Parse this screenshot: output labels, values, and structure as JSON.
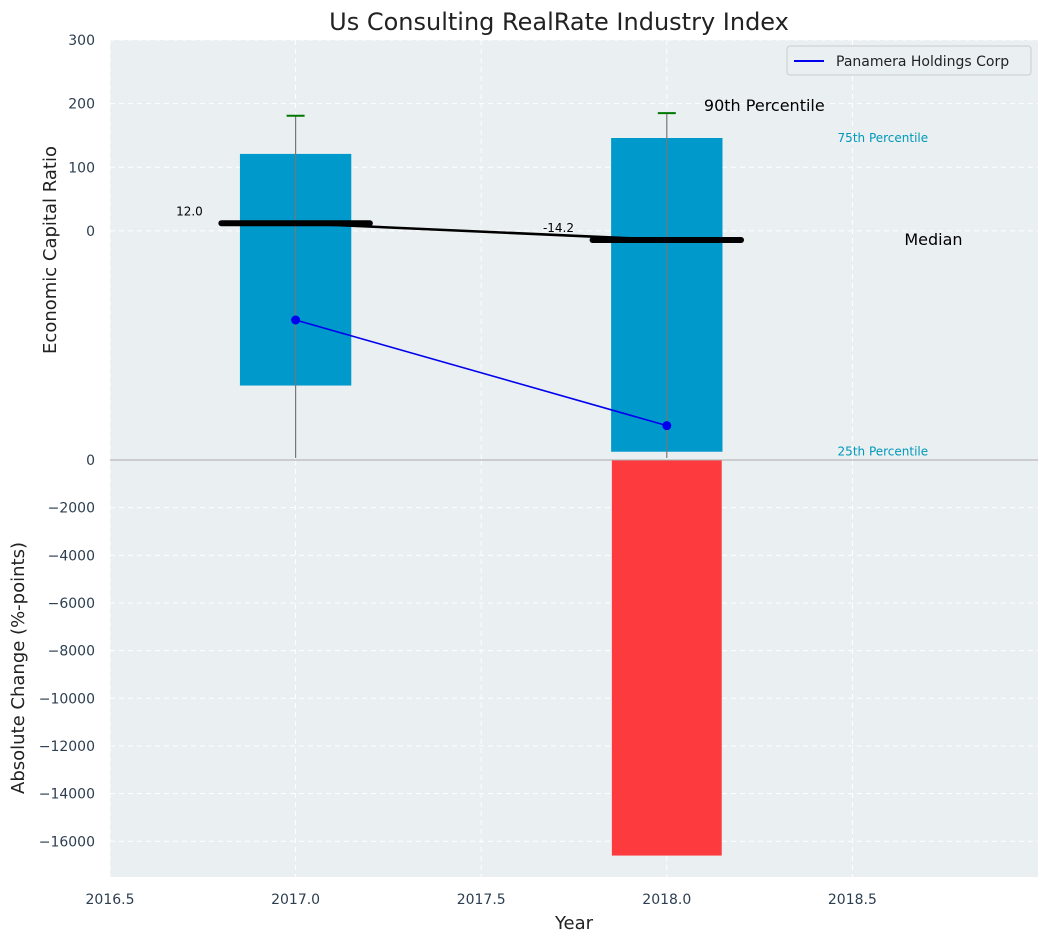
{
  "chart_data": {
    "type": "bar",
    "title": "Us Consulting RealRate Industry Index",
    "xlabel": "Year",
    "xlim": [
      2016.5,
      2019.0
    ],
    "xticks": [
      2016.5,
      2017.0,
      2017.5,
      2018.0,
      2018.5
    ],
    "xtick_labels": [
      "2016.5",
      "2017.0",
      "2017.5",
      "2018.0",
      "2018.5"
    ],
    "grid": true,
    "legend_position": "top-right",
    "colors": {
      "background": "#eaeff1",
      "bar_blue": "#0099cc",
      "bar_red": "#fd3b3e",
      "company_line": "#0000ee",
      "median_line": "#000000",
      "whisker_cap": "#007700",
      "percentile_label": "#0099bb",
      "tick_text": "#2c3e50"
    },
    "top_panel": {
      "ylabel": "Economic Capital Ratio",
      "ylim": [
        -360,
        300
      ],
      "yticks": [
        0,
        100,
        200,
        300
      ],
      "ytick_labels": [
        "0",
        "100",
        "200",
        "300"
      ],
      "series": [
        {
          "name": "Panamera Holdings Corp",
          "type": "line",
          "x": [
            2017.0,
            2018.0
          ],
          "y": [
            -140,
            -306
          ]
        }
      ],
      "percentile_bars": [
        {
          "x": 2017.0,
          "p25": -243,
          "p75": 121,
          "p90": 181,
          "median": 12.0,
          "median_label": "12.0"
        },
        {
          "x": 2018.0,
          "p25": -347,
          "p75": 146,
          "p90": 185,
          "median": -14.2,
          "median_label": "-14.2"
        }
      ],
      "annotations": {
        "p90": "90th Percentile",
        "p75": "75th Percentile",
        "median": "Median",
        "p25": "25th Percentile"
      }
    },
    "bottom_panel": {
      "ylabel": "Absolute Change (%-points)",
      "ylim": [
        -17500,
        0
      ],
      "yticks": [
        0,
        -2000,
        -4000,
        -6000,
        -8000,
        -10000,
        -12000,
        -14000,
        -16000
      ],
      "ytick_labels": [
        "0",
        "−2000",
        "−4000",
        "−6000",
        "−8000",
        "−10000",
        "−12000",
        "−14000",
        "−16000"
      ],
      "bars": [
        {
          "x": 2017.0,
          "value": 0
        },
        {
          "x": 2018.0,
          "value": -16600
        }
      ]
    }
  }
}
